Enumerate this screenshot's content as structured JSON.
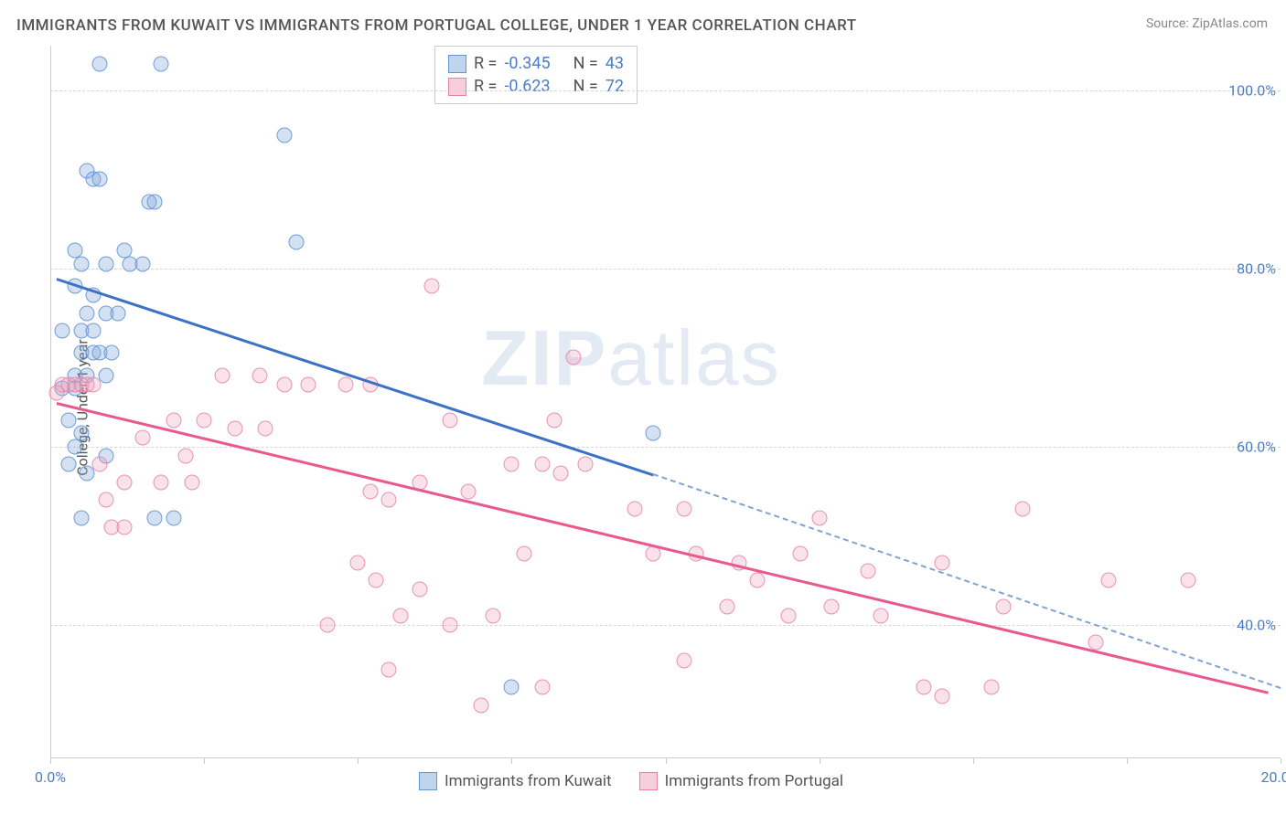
{
  "title": "IMMIGRANTS FROM KUWAIT VS IMMIGRANTS FROM PORTUGAL COLLEGE, UNDER 1 YEAR CORRELATION CHART",
  "source_label": "Source:",
  "source_name": "ZipAtlas.com",
  "y_axis_label": "College, Under 1 year",
  "watermark": {
    "bold": "ZIP",
    "rest": "atlas"
  },
  "chart": {
    "type": "scatter",
    "background_color": "#ffffff",
    "grid_color": "#d5d5d5",
    "grid_style": "dashed",
    "axis_color": "#cccccc",
    "tick_label_color": "#4a7ec9",
    "tick_fontsize": 16,
    "marker_size": 17,
    "xlim": [
      0,
      20
    ],
    "ylim": [
      25,
      105
    ],
    "x_ticks": [
      0,
      2.5,
      5,
      7.5,
      10,
      12.5,
      15,
      17.5,
      20
    ],
    "x_tick_labels": {
      "0": "0.0%",
      "20": "20.0%"
    },
    "y_ticks": [
      40,
      60,
      80,
      100
    ],
    "y_tick_labels": {
      "40": "40.0%",
      "60": "60.0%",
      "80": "80.0%",
      "100": "100.0%"
    },
    "series": [
      {
        "name": "Immigrants from Kuwait",
        "color_fill": "rgba(130,170,220,0.35)",
        "color_stroke": "#6496d2",
        "r_value": "-0.345",
        "n_value": "43",
        "trend": {
          "x1": 0.1,
          "y1": 79,
          "x2": 9.8,
          "y2": 57,
          "color": "#3b72c4",
          "dash_extend_to_x": 20,
          "dash_extend_to_y": 33
        },
        "points": [
          [
            0.8,
            103
          ],
          [
            1.8,
            103
          ],
          [
            0.6,
            91
          ],
          [
            0.7,
            90
          ],
          [
            0.8,
            90
          ],
          [
            1.6,
            87.5
          ],
          [
            1.7,
            87.5
          ],
          [
            3.8,
            95
          ],
          [
            4.0,
            83
          ],
          [
            0.5,
            80.5
          ],
          [
            0.9,
            80.5
          ],
          [
            1.3,
            80.5
          ],
          [
            1.5,
            80.5
          ],
          [
            0.4,
            78
          ],
          [
            0.7,
            77
          ],
          [
            0.2,
            73
          ],
          [
            0.5,
            73
          ],
          [
            0.7,
            73
          ],
          [
            0.5,
            70.5
          ],
          [
            0.7,
            70.5
          ],
          [
            0.8,
            70.5
          ],
          [
            1.0,
            70.5
          ],
          [
            0.4,
            68
          ],
          [
            0.6,
            68
          ],
          [
            0.9,
            68
          ],
          [
            0.2,
            66.5
          ],
          [
            0.4,
            66.5
          ],
          [
            0.3,
            63
          ],
          [
            0.5,
            61.5
          ],
          [
            0.4,
            60
          ],
          [
            0.3,
            58
          ],
          [
            0.6,
            57
          ],
          [
            0.5,
            52
          ],
          [
            1.7,
            52
          ],
          [
            2.0,
            52
          ],
          [
            9.8,
            61.5
          ],
          [
            7.5,
            33
          ],
          [
            0.4,
            82
          ],
          [
            1.2,
            82
          ],
          [
            0.6,
            75
          ],
          [
            0.9,
            75
          ],
          [
            1.1,
            75
          ],
          [
            0.9,
            59
          ]
        ]
      },
      {
        "name": "Immigrants from Portugal",
        "color_fill": "rgba(240,160,185,0.3)",
        "color_stroke": "#e682a5",
        "r_value": "-0.623",
        "n_value": "72",
        "trend": {
          "x1": 0.1,
          "y1": 65,
          "x2": 19.8,
          "y2": 32.5,
          "color": "#e85a8f"
        },
        "points": [
          [
            0.2,
            67
          ],
          [
            0.3,
            67
          ],
          [
            0.4,
            67
          ],
          [
            0.5,
            67
          ],
          [
            0.6,
            67
          ],
          [
            0.7,
            67
          ],
          [
            0.1,
            66
          ],
          [
            6.2,
            78
          ],
          [
            8.5,
            70
          ],
          [
            2.8,
            68
          ],
          [
            3.4,
            68
          ],
          [
            3.8,
            67
          ],
          [
            4.2,
            67
          ],
          [
            4.8,
            67
          ],
          [
            5.2,
            67
          ],
          [
            2.0,
            63
          ],
          [
            2.5,
            63
          ],
          [
            3.0,
            62
          ],
          [
            3.5,
            62
          ],
          [
            6.5,
            63
          ],
          [
            8.2,
            63
          ],
          [
            0.8,
            58
          ],
          [
            1.2,
            56
          ],
          [
            1.0,
            51
          ],
          [
            1.2,
            51
          ],
          [
            2.3,
            56
          ],
          [
            5.2,
            55
          ],
          [
            5.5,
            54
          ],
          [
            6.0,
            56
          ],
          [
            6.8,
            55
          ],
          [
            7.5,
            58
          ],
          [
            8.0,
            58
          ],
          [
            8.3,
            57
          ],
          [
            8.7,
            58
          ],
          [
            5.0,
            47
          ],
          [
            5.3,
            45
          ],
          [
            7.7,
            48
          ],
          [
            9.5,
            53
          ],
          [
            9.8,
            48
          ],
          [
            4.5,
            40
          ],
          [
            5.7,
            41
          ],
          [
            6.5,
            40
          ],
          [
            7.2,
            41
          ],
          [
            5.5,
            35
          ],
          [
            7.0,
            31
          ],
          [
            8.0,
            33
          ],
          [
            10.3,
            53
          ],
          [
            10.5,
            48
          ],
          [
            11.2,
            47
          ],
          [
            11.0,
            42
          ],
          [
            11.5,
            45
          ],
          [
            12.2,
            48
          ],
          [
            12.0,
            41
          ],
          [
            12.7,
            42
          ],
          [
            12.5,
            52
          ],
          [
            13.3,
            46
          ],
          [
            13.5,
            41
          ],
          [
            10.3,
            36
          ],
          [
            14.5,
            47
          ],
          [
            15.8,
            53
          ],
          [
            15.5,
            42
          ],
          [
            14.2,
            33
          ],
          [
            14.5,
            32
          ],
          [
            15.3,
            33
          ],
          [
            17.2,
            45
          ],
          [
            17.0,
            38
          ],
          [
            18.5,
            45
          ],
          [
            1.5,
            61
          ],
          [
            2.2,
            59
          ],
          [
            1.8,
            56
          ],
          [
            0.9,
            54
          ],
          [
            6.0,
            44
          ]
        ]
      }
    ],
    "bottom_legend": [
      {
        "swatch": "blue",
        "label": "Immigrants from Kuwait"
      },
      {
        "swatch": "pink",
        "label": "Immigrants from Portugal"
      }
    ],
    "legend_box": {
      "r_prefix": "R =",
      "n_prefix": "N ="
    }
  }
}
